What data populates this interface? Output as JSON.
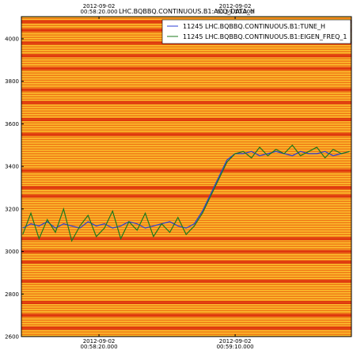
{
  "chart_data": {
    "type": "line",
    "title": "LHC.BQBBQ.CONTINUOUS.B1:ACQ_DATA_H",
    "x": [
      3472,
      3475,
      3478,
      3481,
      3484,
      3487,
      3490,
      3493,
      3496,
      3499,
      3502,
      3505,
      3508,
      3511,
      3514,
      3517,
      3520,
      3523,
      3526,
      3529,
      3532,
      3535,
      3538,
      3541,
      3544,
      3547,
      3550,
      3553,
      3556,
      3559,
      3562,
      3565,
      3568,
      3571,
      3574,
      3577,
      3580,
      3583,
      3586,
      3589,
      3592
    ],
    "series": [
      {
        "name": "11245 LHC.BQBBQ.CONTINUOUS.B1:TUNE_H",
        "color": "#2b3fd6",
        "values": [
          3110,
          3130,
          3120,
          3140,
          3110,
          3130,
          3120,
          3110,
          3140,
          3120,
          3130,
          3110,
          3120,
          3140,
          3130,
          3110,
          3120,
          3130,
          3140,
          3120,
          3110,
          3130,
          3190,
          3270,
          3350,
          3430,
          3460,
          3460,
          3470,
          3450,
          3460,
          3470,
          3460,
          3450,
          3470,
          3460,
          3460,
          3470,
          3450,
          3460,
          3470
        ]
      },
      {
        "name": "11245 LHC.BQBBQ.CONTINUOUS.B1:EIGEN_FREQ_1",
        "color": "#1d7a1d",
        "values": [
          3080,
          3180,
          3060,
          3150,
          3090,
          3200,
          3050,
          3120,
          3170,
          3070,
          3110,
          3190,
          3060,
          3140,
          3100,
          3180,
          3070,
          3130,
          3090,
          3160,
          3080,
          3120,
          3180,
          3260,
          3340,
          3420,
          3460,
          3470,
          3440,
          3490,
          3450,
          3480,
          3460,
          3500,
          3450,
          3470,
          3490,
          3440,
          3480,
          3460,
          3470
        ]
      }
    ],
    "spectrum_lines": [
      2640,
      2700,
      2760,
      2860,
      2950,
      3000,
      3060,
      3260,
      3300,
      3380,
      3550,
      3620,
      3700,
      3760,
      3860,
      3920,
      3980,
      4040,
      4080
    ],
    "xlim": [
      3471.5,
      3592.7
    ],
    "xticks": [
      {
        "value": 3500,
        "label": "2012-09-02\n00:58:20.000"
      },
      {
        "value": 3550,
        "label": "2012-09-02\n00:59:10.000"
      }
    ],
    "ylim": [
      2600,
      4104
    ],
    "yticks": [
      2600,
      2800,
      3000,
      3200,
      3400,
      3600,
      3800,
      4000
    ],
    "legend": "upper right"
  }
}
